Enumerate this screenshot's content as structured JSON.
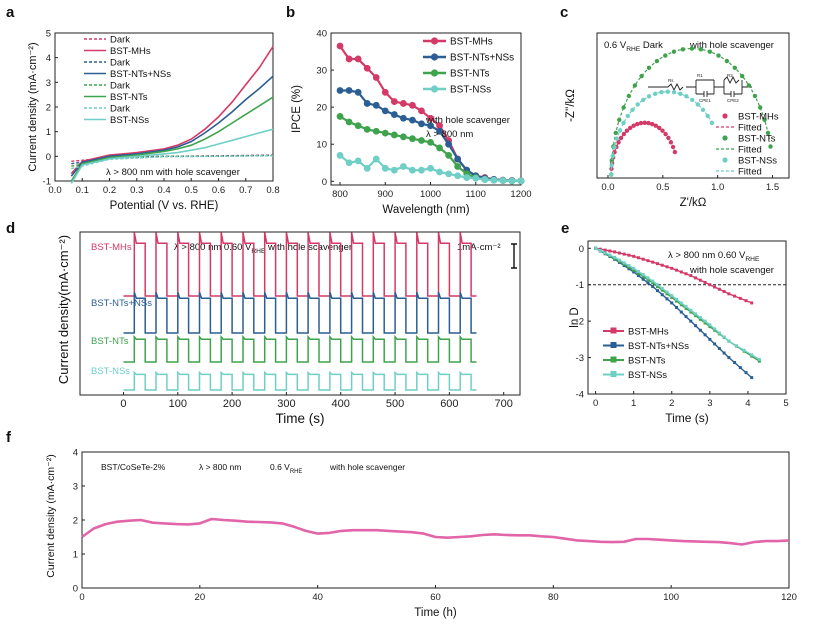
{
  "colors": {
    "mhs": "#d43a67",
    "ntsnss": "#2b5f94",
    "nts": "#3fa34d",
    "nss": "#6fcfc6",
    "f_line": "#e165a8"
  },
  "chart_data": [
    {
      "id": "a",
      "panel_label": "a",
      "type": "line",
      "title": "",
      "xlabel": "Potential (V vs. RHE)",
      "ylabel": "Current density (mA·cm⁻²)",
      "xlim": [
        0.0,
        0.8
      ],
      "ylim": [
        -1,
        5
      ],
      "xticks": [
        "0.0",
        "0.1",
        "0.2",
        "0.3",
        "0.4",
        "0.5",
        "0.6",
        "0.7",
        "0.8"
      ],
      "yticks": [
        "-1",
        "0",
        "1",
        "2",
        "3",
        "4",
        "5"
      ],
      "annotation": "λ > 800 nm    with hole scavenger",
      "legend": [
        "Dark",
        "BST-MHs",
        "Dark",
        "BST-NTs+NSs",
        "Dark",
        "BST-NTs",
        "Dark",
        "BST-NSs"
      ],
      "series": [
        {
          "name": "Dark",
          "color_key": "mhs",
          "dash": true,
          "x": [
            0.06,
            0.2,
            0.4,
            0.6,
            0.8
          ],
          "y": [
            -0.2,
            -0.05,
            0.0,
            0.02,
            0.05
          ]
        },
        {
          "name": "BST-MHs",
          "color_key": "mhs",
          "dash": false,
          "x": [
            0.06,
            0.1,
            0.2,
            0.3,
            0.4,
            0.45,
            0.5,
            0.55,
            0.6,
            0.65,
            0.7,
            0.75,
            0.8
          ],
          "y": [
            -0.7,
            -0.2,
            0.05,
            0.15,
            0.3,
            0.45,
            0.7,
            1.1,
            1.6,
            2.2,
            2.9,
            3.6,
            4.45
          ]
        },
        {
          "name": "Dark",
          "color_key": "ntsnss",
          "dash": true,
          "x": [
            0.06,
            0.2,
            0.4,
            0.6,
            0.8
          ],
          "y": [
            -0.3,
            -0.08,
            0.0,
            0.01,
            0.04
          ]
        },
        {
          "name": "BST-NTs+NSs",
          "color_key": "ntsnss",
          "dash": false,
          "x": [
            0.06,
            0.1,
            0.2,
            0.3,
            0.4,
            0.45,
            0.5,
            0.55,
            0.6,
            0.65,
            0.7,
            0.75,
            0.8
          ],
          "y": [
            -0.8,
            -0.25,
            0.0,
            0.1,
            0.25,
            0.38,
            0.6,
            0.95,
            1.35,
            1.8,
            2.3,
            2.75,
            3.25
          ]
        },
        {
          "name": "Dark",
          "color_key": "nts",
          "dash": true,
          "x": [
            0.06,
            0.2,
            0.4,
            0.6,
            0.8
          ],
          "y": [
            -0.4,
            -0.1,
            0.0,
            0.01,
            0.03
          ]
        },
        {
          "name": "BST-NTs",
          "color_key": "nts",
          "dash": false,
          "x": [
            0.06,
            0.1,
            0.2,
            0.3,
            0.4,
            0.45,
            0.5,
            0.55,
            0.6,
            0.65,
            0.7,
            0.75,
            0.8
          ],
          "y": [
            -1.0,
            -0.3,
            -0.05,
            0.05,
            0.2,
            0.3,
            0.45,
            0.7,
            1.0,
            1.35,
            1.7,
            2.05,
            2.4
          ]
        },
        {
          "name": "Dark",
          "color_key": "nss",
          "dash": true,
          "x": [
            0.06,
            0.2,
            0.4,
            0.6,
            0.8
          ],
          "y": [
            -0.5,
            -0.12,
            -0.02,
            0.0,
            0.02
          ]
        },
        {
          "name": "BST-NSs",
          "color_key": "nss",
          "dash": false,
          "x": [
            0.06,
            0.1,
            0.2,
            0.3,
            0.4,
            0.45,
            0.5,
            0.55,
            0.6,
            0.65,
            0.7,
            0.75,
            0.8
          ],
          "y": [
            -1.1,
            -0.35,
            -0.1,
            0.0,
            0.1,
            0.15,
            0.25,
            0.35,
            0.5,
            0.65,
            0.8,
            0.95,
            1.1
          ]
        }
      ]
    },
    {
      "id": "b",
      "panel_label": "b",
      "type": "line",
      "xlabel": "Wavelength (nm)",
      "ylabel": "IPCE (%)",
      "xlim": [
        780,
        1200
      ],
      "ylim": [
        -1,
        40
      ],
      "xticks": [
        "800",
        "900",
        "1000",
        "1100",
        "1200"
      ],
      "yticks": [
        "0",
        "10",
        "20",
        "30",
        "40"
      ],
      "annotation_lines": [
        "with hole scavenger",
        "λ > 800 nm"
      ],
      "legend": [
        "BST-MHs",
        "BST-NTs+NSs",
        "BST-NTs",
        "BST-NSs"
      ],
      "series": [
        {
          "name": "BST-MHs",
          "color_key": "mhs",
          "x": [
            800,
            820,
            840,
            860,
            880,
            900,
            920,
            940,
            960,
            980,
            1000,
            1020,
            1040,
            1060,
            1080,
            1100,
            1120,
            1140,
            1160,
            1180,
            1200
          ],
          "y": [
            36.5,
            33,
            33,
            30.5,
            28,
            24,
            21.5,
            21,
            20.5,
            19,
            17,
            15,
            11,
            6,
            3,
            1.5,
            1,
            0.5,
            0.3,
            0.2,
            0.1
          ]
        },
        {
          "name": "BST-NTs+NSs",
          "color_key": "ntsnss",
          "x": [
            800,
            820,
            840,
            860,
            880,
            900,
            920,
            940,
            960,
            980,
            1000,
            1020,
            1040,
            1060,
            1080,
            1100,
            1120,
            1140,
            1160,
            1180,
            1200
          ],
          "y": [
            24.5,
            24.5,
            24,
            21,
            20.5,
            19,
            18,
            17,
            16.5,
            15.5,
            15,
            13.5,
            10,
            6,
            3,
            1.5,
            0.8,
            0.5,
            0.3,
            0.2,
            0.1
          ]
        },
        {
          "name": "BST-NTs",
          "color_key": "nts",
          "x": [
            800,
            820,
            840,
            860,
            880,
            900,
            920,
            940,
            960,
            980,
            1000,
            1020,
            1040,
            1060,
            1080,
            1100,
            1120,
            1140,
            1160,
            1180,
            1200
          ],
          "y": [
            17.5,
            16,
            15,
            14,
            13.5,
            13,
            12.5,
            12,
            11.5,
            11,
            10.5,
            9,
            7,
            4,
            2,
            1,
            0.5,
            0.3,
            0.2,
            0.1,
            0.1
          ]
        },
        {
          "name": "BST-NSs",
          "color_key": "nss",
          "x": [
            800,
            820,
            840,
            860,
            880,
            900,
            920,
            940,
            960,
            980,
            1000,
            1020,
            1040,
            1060,
            1080,
            1100,
            1120,
            1140,
            1160,
            1180,
            1200
          ],
          "y": [
            7,
            5,
            5.5,
            3.5,
            6,
            3.5,
            3,
            4,
            3,
            3,
            3.5,
            2.5,
            2,
            1.5,
            1,
            0.8,
            0.5,
            0.3,
            0.2,
            0.1,
            0.1
          ]
        }
      ]
    },
    {
      "id": "c",
      "panel_label": "c",
      "type": "scatter",
      "xlabel": "Z'/kΩ",
      "ylabel": "-Z''/kΩ",
      "xlim": [
        -0.1,
        1.65
      ],
      "ylim": [
        -0.02,
        0.82
      ],
      "xticks": [
        "0.0",
        "0.5",
        "1.0",
        "1.5"
      ],
      "yticks": [],
      "annotation_main": "0.6 V",
      "annotation_sub": "RHE",
      "annotation_rest": "Dark",
      "annotation_right": "with hole scavenger",
      "circuit_labels": [
        "Rs",
        "R1",
        "CPE1",
        "R2",
        "CPE2"
      ],
      "legend": [
        "BST-MHs",
        "Fitted",
        "BST-NTs",
        "Fitted",
        "BST-NSs",
        "Fitted"
      ],
      "series": [
        {
          "name": "BST-MHs",
          "color_key": "mhs",
          "arc": {
            "x0": 0.03,
            "x1": 0.64,
            "h": 0.3
          },
          "ex": 0.61
        },
        {
          "name": "BST-NTs",
          "color_key": "nts",
          "arc": {
            "x0": 0.03,
            "x1": 1.5,
            "h": 0.73
          },
          "ex": 1.48
        },
        {
          "name": "BST-NSs",
          "color_key": "nss",
          "arc": {
            "x0": 0.03,
            "x1": 1.06,
            "h": 0.48
          },
          "ex": 0.96
        }
      ]
    },
    {
      "id": "d",
      "panel_label": "d",
      "type": "line",
      "xlabel": "Time (s)",
      "ylabel": "Current density(mA·cm⁻²)",
      "xlim": [
        -80,
        730
      ],
      "xticks": [
        "0",
        "100",
        "200",
        "300",
        "400",
        "500",
        "600",
        "700"
      ],
      "annotation": "λ > 800 nm   0.60 V",
      "annotation_sub": "RHE",
      "annotation_rest": "with hole scavenger",
      "scale_label": "1mA·cm⁻²",
      "scale_value_mA_cm2": 1,
      "period_s": 40,
      "series": [
        {
          "name": "BST-MHs",
          "color_key": "mhs",
          "base": 0.0,
          "amp": 2.2,
          "spike": 0.45
        },
        {
          "name": "BST-NTs+NSs",
          "color_key": "ntsnss",
          "base": 0.0,
          "amp": 1.45,
          "spike": 0.25
        },
        {
          "name": "BST-NTs",
          "color_key": "nts",
          "base": 0.0,
          "amp": 0.95,
          "spike": 0.1
        },
        {
          "name": "BST-NSs",
          "color_key": "nss",
          "base": 0.0,
          "amp": 0.65,
          "spike": 0.08
        }
      ]
    },
    {
      "id": "e",
      "panel_label": "e",
      "type": "line",
      "xlabel": "Time (s)",
      "ylabel": "ln D",
      "xlim": [
        -0.2,
        5
      ],
      "ylim": [
        -4,
        0.2
      ],
      "xticks": [
        "0",
        "1",
        "2",
        "3",
        "4",
        "5"
      ],
      "yticks": [
        "0",
        "-1",
        "-2",
        "-3",
        "-4"
      ],
      "reference_y": -1,
      "annotation": "λ > 800 nm   0.60 V",
      "annotation_sub": "RHE",
      "annotation_line2": "with hole scavenger",
      "legend": [
        "BST-MHs",
        "BST-NTs+NSs",
        "BST-NTs",
        "BST-NSs"
      ],
      "series": [
        {
          "name": "BST-MHs",
          "color_key": "mhs",
          "x": [
            0,
            0.5,
            1,
            1.5,
            2,
            2.5,
            3,
            3.5,
            4.1
          ],
          "y": [
            0,
            -0.1,
            -0.22,
            -0.38,
            -0.55,
            -0.75,
            -1.0,
            -1.25,
            -1.5
          ]
        },
        {
          "name": "BST-NTs+NSs",
          "color_key": "ntsnss",
          "x": [
            0,
            0.5,
            1,
            1.5,
            2,
            2.5,
            3,
            3.5,
            4.1
          ],
          "y": [
            0,
            -0.3,
            -0.65,
            -1.05,
            -1.5,
            -2.0,
            -2.5,
            -3.0,
            -3.55
          ]
        },
        {
          "name": "BST-NTs",
          "color_key": "nts",
          "x": [
            0,
            0.5,
            1,
            1.5,
            2,
            2.5,
            3,
            3.5,
            4.3
          ],
          "y": [
            0,
            -0.28,
            -0.6,
            -0.95,
            -1.35,
            -1.75,
            -2.15,
            -2.55,
            -3.1
          ]
        },
        {
          "name": "BST-NSs",
          "color_key": "nss",
          "x": [
            0,
            0.5,
            1,
            1.5,
            2,
            2.5,
            3,
            3.5,
            4.3
          ],
          "y": [
            0,
            -0.25,
            -0.55,
            -0.9,
            -1.3,
            -1.7,
            -2.1,
            -2.55,
            -3.05
          ]
        }
      ]
    },
    {
      "id": "f",
      "panel_label": "f",
      "type": "line",
      "xlabel": "Time (h)",
      "ylabel": "Current density (mA·cm⁻²)",
      "xlim": [
        0,
        120
      ],
      "ylim": [
        0,
        4
      ],
      "xticks": [
        "0",
        "20",
        "40",
        "60",
        "80",
        "100",
        "120"
      ],
      "yticks": [
        "0",
        "1",
        "2",
        "3",
        "4"
      ],
      "annotation_parts": [
        "BST/CoSeTe-2%",
        "λ > 800 nm",
        "0.6 V",
        "RHE",
        "with hole scavenger"
      ],
      "series": [
        {
          "name": "BST/CoSeTe-2%",
          "color_key": "f_line",
          "x": [
            0,
            2,
            4,
            6,
            8,
            10,
            12,
            14,
            16,
            18,
            20,
            22,
            24,
            26,
            28,
            30,
            32,
            34,
            36,
            38,
            40,
            42,
            44,
            46,
            48,
            50,
            52,
            54,
            56,
            58,
            60,
            62,
            64,
            66,
            68,
            70,
            72,
            74,
            76,
            78,
            80,
            82,
            84,
            86,
            88,
            90,
            92,
            94,
            96,
            98,
            100,
            102,
            104,
            106,
            108,
            110,
            112,
            114,
            116,
            118,
            120
          ],
          "y": [
            1.5,
            1.75,
            1.88,
            1.95,
            1.98,
            2.0,
            1.92,
            1.9,
            1.88,
            1.87,
            1.9,
            2.03,
            2.0,
            1.98,
            1.95,
            1.94,
            1.93,
            1.9,
            1.8,
            1.68,
            1.6,
            1.62,
            1.68,
            1.7,
            1.7,
            1.7,
            1.68,
            1.66,
            1.64,
            1.6,
            1.5,
            1.48,
            1.5,
            1.52,
            1.56,
            1.58,
            1.56,
            1.55,
            1.55,
            1.52,
            1.5,
            1.45,
            1.4,
            1.38,
            1.36,
            1.35,
            1.36,
            1.44,
            1.44,
            1.42,
            1.4,
            1.38,
            1.37,
            1.36,
            1.35,
            1.32,
            1.28,
            1.35,
            1.38,
            1.38,
            1.4
          ]
        }
      ]
    }
  ]
}
